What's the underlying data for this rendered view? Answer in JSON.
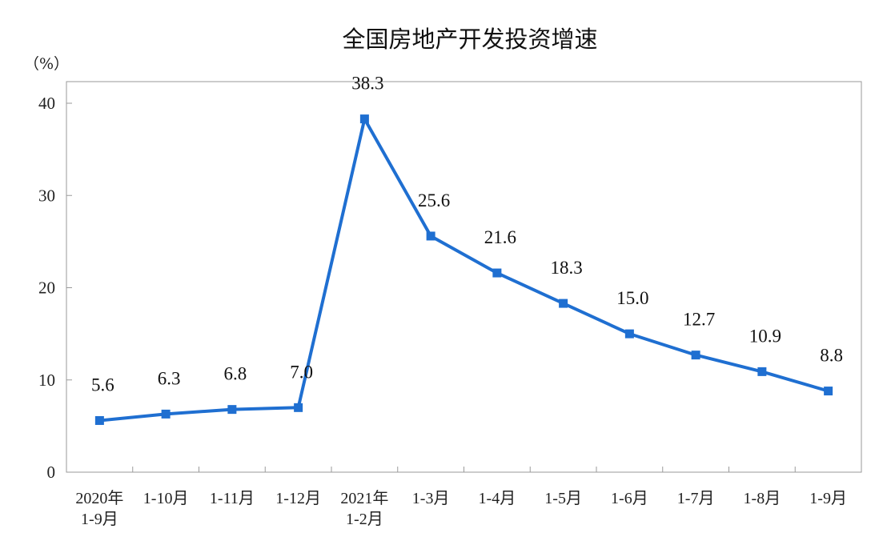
{
  "chart_data": {
    "type": "line",
    "title": "全国房地产开发投资增速",
    "unit_label": "（%）",
    "categories": [
      [
        "2020年",
        "1-9月"
      ],
      [
        "1-10月"
      ],
      [
        "1-11月"
      ],
      [
        "1-12月"
      ],
      [
        "2021年",
        "1-2月"
      ],
      [
        "1-3月"
      ],
      [
        "1-4月"
      ],
      [
        "1-5月"
      ],
      [
        "1-6月"
      ],
      [
        "1-7月"
      ],
      [
        "1-8月"
      ],
      [
        "1-9月"
      ]
    ],
    "values": [
      5.6,
      6.3,
      6.8,
      7.0,
      38.3,
      25.6,
      21.6,
      18.3,
      15.0,
      12.7,
      10.9,
      8.8
    ],
    "data_labels": [
      "5.6",
      "6.3",
      "6.8",
      "7.0",
      "38.3",
      "25.6",
      "21.6",
      "18.3",
      "15.0",
      "12.7",
      "10.9",
      "8.8"
    ],
    "y_ticks": [
      0,
      10,
      20,
      30,
      40
    ],
    "ylim": [
      0,
      40
    ],
    "grid": false,
    "legend": "none",
    "line_color": "#1f6fd1",
    "marker": "square"
  }
}
